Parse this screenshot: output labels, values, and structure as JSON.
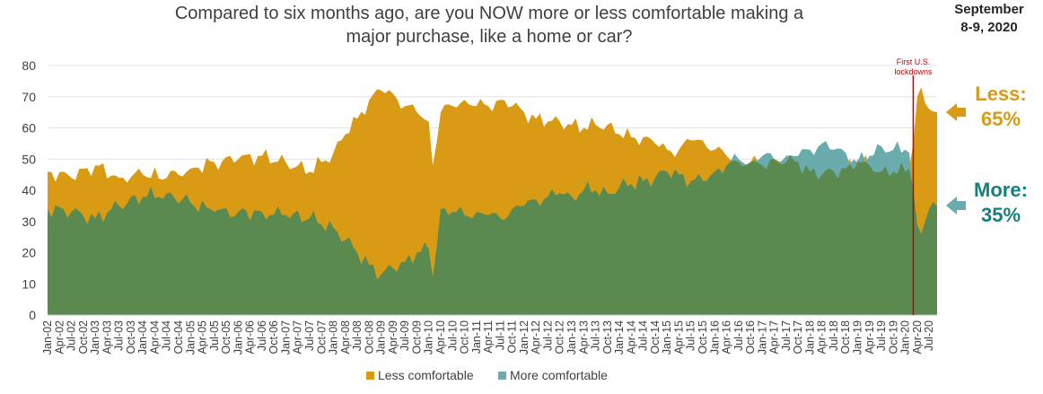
{
  "header": {
    "title_line1": "Compared to six months ago, are you NOW more or less comfortable making a",
    "title_line2": "major purchase, like a home or car?",
    "date_line1": "September",
    "date_line2": "8-9, 2020"
  },
  "callouts": {
    "less_label": "Less:",
    "less_value": "65%",
    "more_label": "More:",
    "more_value": "35%"
  },
  "annotation": {
    "line1": "First U.S.",
    "line2": "lockdowns"
  },
  "colors": {
    "less": "#D99A14",
    "more": "#6AACAE",
    "overlap": "#5B8A50",
    "annotation": "#C00000",
    "less_callout": "#D99A14",
    "more_callout": "#16807C"
  },
  "chart_data": {
    "type": "area",
    "ylim": [
      0,
      80
    ],
    "yticks": [
      0,
      10,
      20,
      30,
      40,
      50,
      60,
      70,
      80
    ],
    "grid": true,
    "legend_position": "bottom",
    "x_start": "Jan-02",
    "x_end": "Sep-20",
    "x_tick_labels": [
      "Jan-02",
      "Apr-02",
      "Jul-02",
      "Oct-02",
      "Jan-03",
      "Apr-03",
      "Jul-03",
      "Oct-03",
      "Jan-04",
      "Apr-04",
      "Jul-04",
      "Oct-04",
      "Jan-05",
      "Apr-05",
      "Jul-05",
      "Oct-05",
      "Jan-06",
      "Apr-06",
      "Jul-06",
      "Oct-06",
      "Jan-07",
      "Apr-07",
      "Jul-07",
      "Oct-07",
      "Jan-08",
      "Apr-08",
      "Jul-08",
      "Oct-08",
      "Jan-09",
      "Apr-09",
      "Jul-09",
      "Oct-09",
      "Jan-10",
      "Apr-10",
      "Jul-10",
      "Oct-10",
      "Jan-11",
      "Apr-11",
      "Jul-11",
      "Oct-11",
      "Jan-12",
      "Apr-12",
      "Jul-12",
      "Oct-12",
      "Jan-13",
      "Apr-13",
      "Jul-13",
      "Oct-13",
      "Jan-14",
      "Apr-14",
      "Jul-14",
      "Oct-14",
      "Jan-15",
      "Apr-15",
      "Jul-15",
      "Oct-15",
      "Jan-16",
      "Apr-16",
      "Jul-16",
      "Oct-16",
      "Jan-17",
      "Apr-17",
      "Jul-17",
      "Oct-17",
      "Jan-18",
      "Apr-18",
      "Jul-18",
      "Oct-18",
      "Jan-19",
      "Apr-19",
      "Jul-19",
      "Oct-19",
      "Jan-20",
      "Apr-20",
      "Jul-20"
    ],
    "series_anchors": [
      {
        "name": "Less comfortable",
        "points": [
          [
            "Jan-02",
            46
          ],
          [
            "Jul-02",
            44
          ],
          [
            "Jan-03",
            48
          ],
          [
            "Jul-03",
            44
          ],
          [
            "Jan-04",
            45
          ],
          [
            "Jul-04",
            44
          ],
          [
            "Jan-05",
            47
          ],
          [
            "Jul-05",
            49
          ],
          [
            "Jan-06",
            50
          ],
          [
            "Jul-06",
            51
          ],
          [
            "Jan-07",
            49
          ],
          [
            "Jul-07",
            46
          ],
          [
            "Jan-08",
            52
          ],
          [
            "Apr-08",
            58
          ],
          [
            "Jul-08",
            63
          ],
          [
            "Oct-08",
            69
          ],
          [
            "Jan-09",
            72
          ],
          [
            "Apr-09",
            71
          ],
          [
            "Jul-09",
            67
          ],
          [
            "Oct-09",
            65
          ],
          [
            "Jan-10",
            62
          ],
          [
            "Feb-10",
            48
          ],
          [
            "Apr-10",
            65
          ],
          [
            "Jul-10",
            67
          ],
          [
            "Oct-10",
            69
          ],
          [
            "Jan-11",
            67
          ],
          [
            "Apr-11",
            67
          ],
          [
            "Jul-11",
            69
          ],
          [
            "Oct-11",
            67
          ],
          [
            "Jan-12",
            65
          ],
          [
            "Apr-12",
            63
          ],
          [
            "Jul-12",
            62
          ],
          [
            "Oct-12",
            62
          ],
          [
            "Jan-13",
            61
          ],
          [
            "Apr-13",
            60
          ],
          [
            "Jul-13",
            61
          ],
          [
            "Oct-13",
            61
          ],
          [
            "Jan-14",
            58
          ],
          [
            "Apr-14",
            57
          ],
          [
            "Jul-14",
            57
          ],
          [
            "Oct-14",
            55
          ],
          [
            "Jan-15",
            53
          ],
          [
            "Apr-15",
            53
          ],
          [
            "Jul-15",
            56
          ],
          [
            "Oct-15",
            56
          ],
          [
            "Jan-16",
            53
          ],
          [
            "Apr-16",
            51
          ],
          [
            "Jul-16",
            49
          ],
          [
            "Oct-16",
            49
          ],
          [
            "Jan-17",
            48
          ],
          [
            "Apr-17",
            50
          ],
          [
            "Jul-17",
            49
          ],
          [
            "Oct-17",
            49
          ],
          [
            "Jan-18",
            46
          ],
          [
            "Apr-18",
            45
          ],
          [
            "Jul-18",
            46
          ],
          [
            "Oct-18",
            47
          ],
          [
            "Jan-19",
            50
          ],
          [
            "Apr-19",
            48
          ],
          [
            "Jul-19",
            46
          ],
          [
            "Oct-19",
            46
          ],
          [
            "Jan-20",
            46
          ],
          [
            "Feb-20",
            47
          ],
          [
            "Mar-20",
            55
          ],
          [
            "Apr-20",
            70
          ],
          [
            "May-20",
            73
          ],
          [
            "Jun-20",
            68
          ],
          [
            "Jul-20",
            66
          ],
          [
            "Sep-20",
            65
          ]
        ]
      },
      {
        "name": "More comfortable",
        "points": [
          [
            "Jan-02",
            34
          ],
          [
            "Jul-02",
            33
          ],
          [
            "Jan-03",
            31
          ],
          [
            "Jul-03",
            35
          ],
          [
            "Jan-04",
            38
          ],
          [
            "Jul-04",
            39
          ],
          [
            "Jan-05",
            36
          ],
          [
            "Jul-05",
            33
          ],
          [
            "Jan-06",
            33
          ],
          [
            "Jul-06",
            33
          ],
          [
            "Jan-07",
            32
          ],
          [
            "Jul-07",
            31
          ],
          [
            "Jan-08",
            28
          ],
          [
            "Apr-08",
            24
          ],
          [
            "Jul-08",
            20
          ],
          [
            "Oct-08",
            16
          ],
          [
            "Jan-09",
            13
          ],
          [
            "Apr-09",
            15
          ],
          [
            "Jul-09",
            17
          ],
          [
            "Oct-09",
            20
          ],
          [
            "Jan-10",
            21
          ],
          [
            "Feb-10",
            12
          ],
          [
            "Apr-10",
            34
          ],
          [
            "Jul-10",
            33
          ],
          [
            "Oct-10",
            32
          ],
          [
            "Jan-11",
            33
          ],
          [
            "Apr-11",
            32
          ],
          [
            "Jul-11",
            31
          ],
          [
            "Oct-11",
            34
          ],
          [
            "Jan-12",
            35
          ],
          [
            "Apr-12",
            37
          ],
          [
            "Jul-12",
            38
          ],
          [
            "Oct-12",
            39
          ],
          [
            "Jan-13",
            38
          ],
          [
            "Apr-13",
            40
          ],
          [
            "Jul-13",
            40
          ],
          [
            "Oct-13",
            39
          ],
          [
            "Jan-14",
            41
          ],
          [
            "Apr-14",
            42
          ],
          [
            "Jul-14",
            43
          ],
          [
            "Oct-14",
            44
          ],
          [
            "Jan-15",
            46
          ],
          [
            "Apr-15",
            45
          ],
          [
            "Jul-15",
            43
          ],
          [
            "Oct-15",
            43
          ],
          [
            "Jan-16",
            46
          ],
          [
            "Apr-16",
            48
          ],
          [
            "Jul-16",
            50
          ],
          [
            "Oct-16",
            49
          ],
          [
            "Jan-17",
            51
          ],
          [
            "Apr-17",
            50
          ],
          [
            "Jul-17",
            51
          ],
          [
            "Oct-17",
            51
          ],
          [
            "Jan-18",
            53
          ],
          [
            "Apr-18",
            55
          ],
          [
            "Jul-18",
            53
          ],
          [
            "Oct-18",
            52
          ],
          [
            "Jan-19",
            49
          ],
          [
            "Apr-19",
            51
          ],
          [
            "Jul-19",
            54
          ],
          [
            "Oct-19",
            53
          ],
          [
            "Jan-20",
            53
          ],
          [
            "Feb-20",
            52
          ],
          [
            "Mar-20",
            40
          ],
          [
            "Apr-20",
            29
          ],
          [
            "May-20",
            26
          ],
          [
            "Jun-20",
            30
          ],
          [
            "Jul-20",
            34
          ],
          [
            "Sep-20",
            35
          ]
        ]
      }
    ],
    "annotation_date": "Mar-20",
    "legend": [
      "Less comfortable",
      "More comfortable"
    ]
  }
}
